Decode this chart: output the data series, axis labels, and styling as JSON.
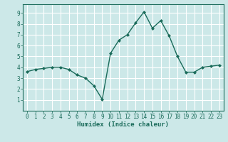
{
  "x": [
    0,
    1,
    2,
    3,
    4,
    5,
    6,
    7,
    8,
    9,
    10,
    11,
    12,
    13,
    14,
    15,
    16,
    17,
    18,
    19,
    20,
    21,
    22,
    23
  ],
  "y": [
    3.6,
    3.8,
    3.9,
    4.0,
    4.0,
    3.8,
    3.3,
    3.0,
    2.3,
    1.05,
    5.3,
    6.5,
    7.0,
    8.1,
    9.1,
    7.6,
    8.3,
    6.9,
    5.0,
    3.55,
    3.55,
    4.0,
    4.1,
    4.2
  ],
  "line_color": "#1a6b5a",
  "marker": "D",
  "marker_size": 2.0,
  "bg_color": "#cce8e8",
  "grid_color": "#ffffff",
  "xlabel": "Humidex (Indice chaleur)",
  "xlim": [
    -0.5,
    23.5
  ],
  "ylim": [
    0,
    9.8
  ],
  "xticks": [
    0,
    1,
    2,
    3,
    4,
    5,
    6,
    7,
    8,
    9,
    10,
    11,
    12,
    13,
    14,
    15,
    16,
    17,
    18,
    19,
    20,
    21,
    22,
    23
  ],
  "yticks": [
    1,
    2,
    3,
    4,
    5,
    6,
    7,
    8,
    9
  ],
  "tick_color": "#1a6b5a",
  "label_fontsize": 6.5,
  "tick_fontsize": 5.5,
  "linewidth": 1.0
}
